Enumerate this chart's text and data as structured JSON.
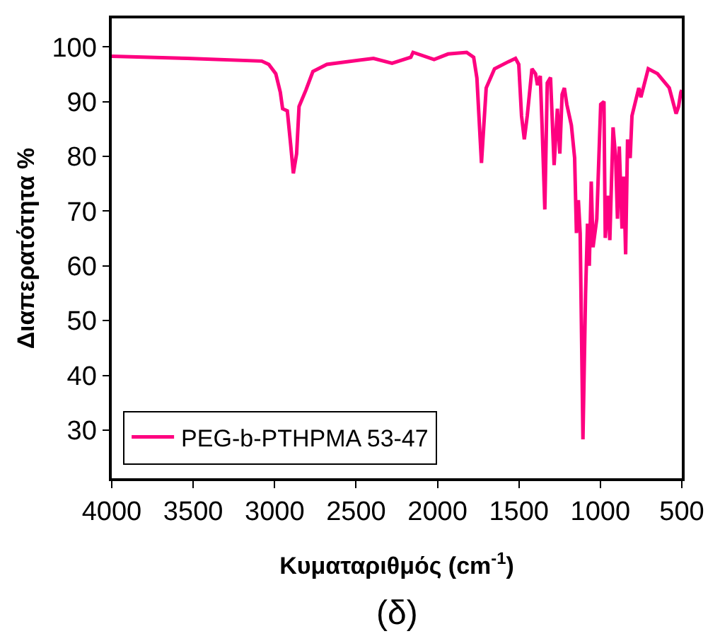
{
  "chart_data": {
    "type": "line",
    "xlabel": "Κυματαριθμός (cm$^{-1}$)",
    "ylabel": "Διαπερατότητα %",
    "annotations": [
      "(δ)"
    ],
    "xlim": [
      4000,
      500
    ],
    "ylim": [
      21.2,
      105.2
    ],
    "xticks": [
      4000,
      3500,
      3000,
      2500,
      2000,
      1500,
      1000,
      500
    ],
    "yticks": [
      30,
      40,
      50,
      60,
      70,
      80,
      90,
      100
    ],
    "legend": "bottom left",
    "marker": "none",
    "line_style": "solid",
    "series": [
      {
        "name": "PEG-b-PTHPMA 53-47",
        "color": "#fe0080",
        "x": [
          4000,
          3537,
          3079,
          3036,
          2993,
          2965,
          2951,
          2922,
          2902,
          2885,
          2865,
          2850,
          2808,
          2765,
          2679,
          2393,
          2279,
          2164,
          2150,
          2021,
          1935,
          1821,
          1778,
          1758,
          1730,
          1701,
          1650,
          1564,
          1521,
          1501,
          1484,
          1467,
          1449,
          1420,
          1398,
          1386,
          1369,
          1358,
          1341,
          1326,
          1306,
          1284,
          1264,
          1249,
          1235,
          1221,
          1206,
          1178,
          1158,
          1147,
          1135,
          1124,
          1107,
          1091,
          1079,
          1068,
          1056,
          1045,
          1022,
          998,
          978,
          970,
          953,
          942,
          922,
          906,
          895,
          884,
          867,
          856,
          845,
          833,
          817,
          806,
          764,
          751,
          706,
          649,
          577,
          535,
          520,
          506,
          500
        ],
        "values": [
          98.3,
          97.9,
          97.4,
          96.8,
          95.1,
          91.7,
          88.7,
          88.3,
          82.3,
          76.9,
          80.5,
          89.1,
          92.1,
          95.5,
          96.8,
          97.9,
          97.0,
          98.1,
          99.0,
          97.7,
          98.7,
          99.0,
          98.1,
          94.3,
          78.8,
          92.5,
          96.0,
          97.3,
          97.9,
          96.8,
          87.4,
          83.1,
          87.4,
          96.0,
          95.1,
          93.0,
          94.7,
          85.7,
          70.3,
          93.4,
          94.4,
          78.4,
          88.7,
          80.5,
          91.3,
          92.5,
          89.5,
          85.7,
          79.7,
          66.0,
          72.0,
          66.0,
          28.3,
          54.8,
          67.7,
          60.0,
          75.4,
          63.4,
          68.6,
          89.5,
          90.0,
          65.1,
          72.8,
          64.7,
          85.3,
          79.7,
          68.6,
          81.8,
          66.8,
          76.3,
          62.1,
          83.1,
          79.7,
          87.4,
          92.5,
          90.8,
          96.0,
          95.1,
          92.5,
          87.8,
          89.1,
          91.7,
          92.1
        ]
      }
    ]
  }
}
